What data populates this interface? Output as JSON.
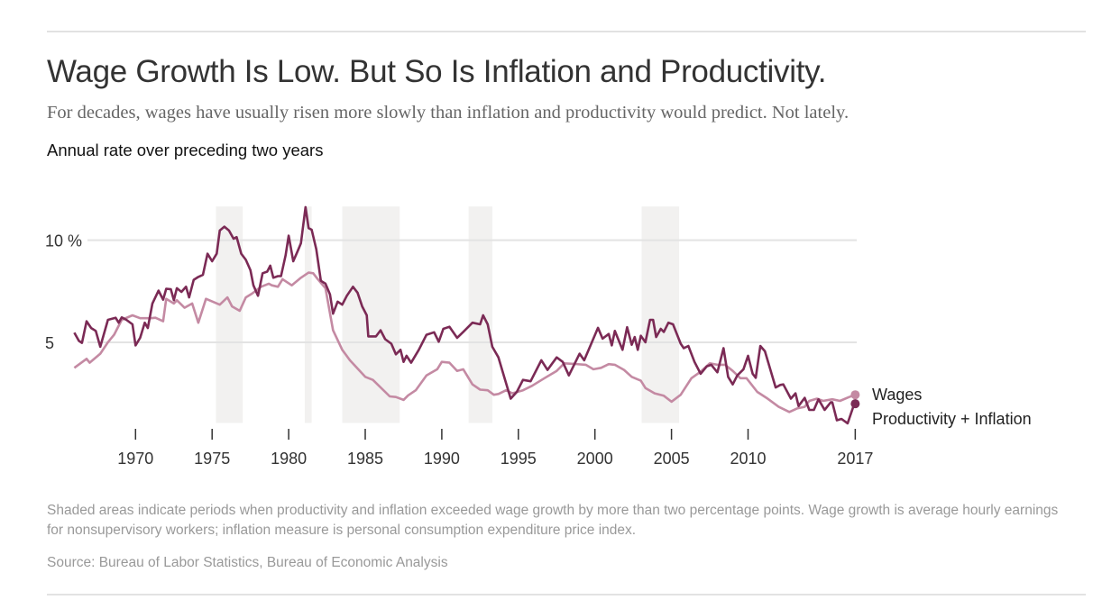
{
  "title": "Wage Growth Is Low. But So Is Inflation and Productivity.",
  "subtitle": "For decades, wages have usually risen more slowly than inflation and productivity would predict. Not lately.",
  "unit_label": "Annual rate over preceding two years",
  "footnote": "Shaded areas indicate periods when productivity and inflation exceeded wage growth by more than two percentage points. Wage growth is average hourly earnings for nonsupervisory workers; inflation measure is personal consumption expenditure price index.",
  "source": "Source: Bureau of Labor Statistics, Bureau of Economic Analysis",
  "chart_data": {
    "type": "line",
    "title": "",
    "xlabel": "",
    "ylabel": "",
    "xlim": [
      1966,
      2017
    ],
    "ylim": [
      1.05,
      11.65
    ],
    "grid": true,
    "legend_placement": "right, at line ends",
    "x_ticks": [
      {
        "value": 1970,
        "label": "1970"
      },
      {
        "value": 1975,
        "label": "1975"
      },
      {
        "value": 1980,
        "label": "1980"
      },
      {
        "value": 1985,
        "label": "1985"
      },
      {
        "value": 1990,
        "label": "1990"
      },
      {
        "value": 1995,
        "label": "1995"
      },
      {
        "value": 2000,
        "label": "2000"
      },
      {
        "value": 2005,
        "label": "2005"
      },
      {
        "value": 2010,
        "label": "2010"
      },
      {
        "value": 2017,
        "label": "2017"
      }
    ],
    "y_ticks": [
      {
        "value": 10,
        "label": "10 %"
      },
      {
        "value": 5,
        "label": "5"
      }
    ],
    "shaded_periods": [
      [
        1975.25,
        1977.0
      ],
      [
        1981.05,
        1981.5
      ],
      [
        1983.5,
        1987.25
      ],
      [
        1991.75,
        1993.3
      ],
      [
        2003.05,
        2005.5
      ]
    ],
    "shade_color": "#f2f1f0",
    "series": [
      {
        "name": "Productivity + Inflation",
        "color": "#7b2a55",
        "points": [
          [
            1966.0,
            5.47
          ],
          [
            1966.3,
            5.07
          ],
          [
            1966.5,
            4.97
          ],
          [
            1966.8,
            6.03
          ],
          [
            1967.1,
            5.7
          ],
          [
            1967.4,
            5.56
          ],
          [
            1967.7,
            4.78
          ],
          [
            1968.2,
            6.1
          ],
          [
            1968.7,
            6.2
          ],
          [
            1968.9,
            5.96
          ],
          [
            1969.1,
            6.22
          ],
          [
            1969.4,
            6.1
          ],
          [
            1969.8,
            5.88
          ],
          [
            1970.0,
            4.85
          ],
          [
            1970.3,
            5.22
          ],
          [
            1970.6,
            5.96
          ],
          [
            1970.8,
            5.7
          ],
          [
            1971.1,
            6.9
          ],
          [
            1971.5,
            7.53
          ],
          [
            1971.8,
            7.09
          ],
          [
            1972.0,
            7.62
          ],
          [
            1972.3,
            7.6
          ],
          [
            1972.5,
            7.06
          ],
          [
            1972.7,
            7.65
          ],
          [
            1973.0,
            7.47
          ],
          [
            1973.3,
            7.72
          ],
          [
            1973.5,
            7.2
          ],
          [
            1973.8,
            8.06
          ],
          [
            1974.1,
            8.2
          ],
          [
            1974.4,
            8.3
          ],
          [
            1974.7,
            9.34
          ],
          [
            1975.0,
            8.97
          ],
          [
            1975.3,
            9.34
          ],
          [
            1975.5,
            10.47
          ],
          [
            1975.8,
            10.66
          ],
          [
            1976.1,
            10.47
          ],
          [
            1976.4,
            10.07
          ],
          [
            1976.6,
            10.15
          ],
          [
            1976.9,
            9.34
          ],
          [
            1977.2,
            9.04
          ],
          [
            1977.5,
            8.53
          ],
          [
            1977.7,
            7.79
          ],
          [
            1978.0,
            7.28
          ],
          [
            1978.3,
            8.38
          ],
          [
            1978.6,
            8.46
          ],
          [
            1978.8,
            8.75
          ],
          [
            1979.0,
            8.16
          ],
          [
            1979.3,
            8.24
          ],
          [
            1979.5,
            8.24
          ],
          [
            1979.8,
            9.26
          ],
          [
            1980.0,
            10.22
          ],
          [
            1980.3,
            8.97
          ],
          [
            1980.6,
            9.49
          ],
          [
            1980.8,
            9.85
          ],
          [
            1981.1,
            11.62
          ],
          [
            1981.3,
            10.59
          ],
          [
            1981.5,
            10.51
          ],
          [
            1981.8,
            9.56
          ],
          [
            1982.1,
            8.01
          ],
          [
            1982.4,
            7.87
          ],
          [
            1982.7,
            7.35
          ],
          [
            1982.9,
            6.4
          ],
          [
            1983.2,
            6.99
          ],
          [
            1983.5,
            6.84
          ],
          [
            1983.8,
            7.28
          ],
          [
            1984.2,
            7.72
          ],
          [
            1984.5,
            7.43
          ],
          [
            1984.8,
            6.76
          ],
          [
            1985.1,
            6.32
          ],
          [
            1985.2,
            5.29
          ],
          [
            1985.7,
            5.29
          ],
          [
            1986.0,
            5.59
          ],
          [
            1986.3,
            5.15
          ],
          [
            1986.7,
            4.93
          ],
          [
            1987.0,
            4.41
          ],
          [
            1987.3,
            4.63
          ],
          [
            1987.5,
            4.04
          ],
          [
            1987.7,
            4.34
          ],
          [
            1988.0,
            4.0
          ],
          [
            1988.5,
            4.63
          ],
          [
            1989.0,
            5.37
          ],
          [
            1989.5,
            5.49
          ],
          [
            1989.8,
            5.03
          ],
          [
            1990.1,
            5.66
          ],
          [
            1990.5,
            5.76
          ],
          [
            1991.0,
            5.22
          ],
          [
            1991.4,
            5.51
          ],
          [
            1992.0,
            5.96
          ],
          [
            1992.5,
            5.88
          ],
          [
            1992.7,
            6.32
          ],
          [
            1993.0,
            5.88
          ],
          [
            1993.3,
            4.78
          ],
          [
            1993.7,
            4.26
          ],
          [
            1994.1,
            3.24
          ],
          [
            1994.5,
            2.24
          ],
          [
            1994.9,
            2.57
          ],
          [
            1995.3,
            3.16
          ],
          [
            1995.8,
            3.09
          ],
          [
            1996.5,
            4.12
          ],
          [
            1996.9,
            3.65
          ],
          [
            1997.5,
            4.26
          ],
          [
            1997.9,
            4.04
          ],
          [
            1998.3,
            3.38
          ],
          [
            1999.0,
            4.44
          ],
          [
            1999.3,
            4.12
          ],
          [
            1999.8,
            5.0
          ],
          [
            2000.2,
            5.71
          ],
          [
            2000.5,
            5.18
          ],
          [
            2000.9,
            5.41
          ],
          [
            2001.1,
            4.85
          ],
          [
            2001.3,
            5.56
          ],
          [
            2001.8,
            4.63
          ],
          [
            2002.1,
            5.74
          ],
          [
            2002.4,
            4.88
          ],
          [
            2002.6,
            5.26
          ],
          [
            2002.8,
            4.63
          ],
          [
            2003.0,
            5.32
          ],
          [
            2003.3,
            5.0
          ],
          [
            2003.6,
            6.1
          ],
          [
            2003.8,
            6.1
          ],
          [
            2004.0,
            5.26
          ],
          [
            2004.3,
            5.66
          ],
          [
            2004.5,
            5.51
          ],
          [
            2004.8,
            5.96
          ],
          [
            2005.1,
            5.88
          ],
          [
            2005.6,
            4.93
          ],
          [
            2005.8,
            4.71
          ],
          [
            2006.1,
            4.82
          ],
          [
            2006.5,
            4.04
          ],
          [
            2006.9,
            3.46
          ],
          [
            2007.3,
            3.82
          ],
          [
            2007.6,
            3.9
          ],
          [
            2008.0,
            3.53
          ],
          [
            2008.4,
            4.71
          ],
          [
            2008.7,
            3.31
          ],
          [
            2009.0,
            2.94
          ],
          [
            2009.3,
            3.38
          ],
          [
            2009.7,
            3.68
          ],
          [
            2010.0,
            4.34
          ],
          [
            2010.3,
            3.46
          ],
          [
            2010.5,
            3.26
          ],
          [
            2010.8,
            4.82
          ],
          [
            2011.1,
            4.56
          ],
          [
            2011.8,
            2.79
          ],
          [
            2012.1,
            2.91
          ],
          [
            2012.3,
            2.94
          ],
          [
            2012.8,
            2.24
          ],
          [
            2013.1,
            2.5
          ],
          [
            2013.3,
            1.88
          ],
          [
            2013.7,
            2.28
          ],
          [
            2014.0,
            1.69
          ],
          [
            2014.3,
            1.69
          ],
          [
            2014.6,
            2.21
          ],
          [
            2015.0,
            1.69
          ],
          [
            2015.4,
            2.06
          ],
          [
            2015.5,
            2.06
          ],
          [
            2015.8,
            1.18
          ],
          [
            2016.1,
            1.25
          ],
          [
            2016.5,
            1.03
          ],
          [
            2016.9,
            1.91
          ],
          [
            2017.0,
            1.99
          ]
        ]
      },
      {
        "name": "Wages",
        "color": "#c48aa3",
        "points": [
          [
            1966.0,
            3.75
          ],
          [
            1966.8,
            4.19
          ],
          [
            1967.0,
            4.0
          ],
          [
            1967.7,
            4.44
          ],
          [
            1968.2,
            5.0
          ],
          [
            1968.6,
            5.37
          ],
          [
            1969.1,
            6.1
          ],
          [
            1969.8,
            6.32
          ],
          [
            1970.3,
            6.18
          ],
          [
            1971.0,
            6.18
          ],
          [
            1971.3,
            6.2
          ],
          [
            1971.8,
            6.03
          ],
          [
            1972.0,
            7.13
          ],
          [
            1972.5,
            6.9
          ],
          [
            1972.7,
            7.06
          ],
          [
            1973.2,
            6.69
          ],
          [
            1973.7,
            6.9
          ],
          [
            1974.1,
            5.96
          ],
          [
            1974.6,
            7.13
          ],
          [
            1975.5,
            6.84
          ],
          [
            1976.0,
            7.2
          ],
          [
            1976.3,
            6.76
          ],
          [
            1976.8,
            6.54
          ],
          [
            1977.2,
            7.2
          ],
          [
            1977.6,
            7.38
          ],
          [
            1978.2,
            7.72
          ],
          [
            1978.7,
            7.87
          ],
          [
            1978.9,
            7.79
          ],
          [
            1979.3,
            7.72
          ],
          [
            1979.6,
            8.09
          ],
          [
            1980.2,
            7.79
          ],
          [
            1980.8,
            8.16
          ],
          [
            1981.3,
            8.41
          ],
          [
            1981.6,
            8.38
          ],
          [
            1981.9,
            8.09
          ],
          [
            1982.4,
            7.65
          ],
          [
            1982.9,
            5.59
          ],
          [
            1983.5,
            4.63
          ],
          [
            1984.0,
            4.12
          ],
          [
            1985.0,
            3.31
          ],
          [
            1985.5,
            3.16
          ],
          [
            1986.6,
            2.35
          ],
          [
            1987.0,
            2.32
          ],
          [
            1987.5,
            2.18
          ],
          [
            1987.8,
            2.4
          ],
          [
            1988.3,
            2.65
          ],
          [
            1989.0,
            3.38
          ],
          [
            1989.7,
            3.68
          ],
          [
            1990.0,
            4.04
          ],
          [
            1990.5,
            4.0
          ],
          [
            1991.0,
            3.6
          ],
          [
            1991.4,
            3.68
          ],
          [
            1992.0,
            2.94
          ],
          [
            1992.5,
            2.68
          ],
          [
            1993.0,
            2.65
          ],
          [
            1993.4,
            2.43
          ],
          [
            1993.7,
            2.47
          ],
          [
            1994.2,
            2.65
          ],
          [
            1994.6,
            2.5
          ],
          [
            1995.3,
            2.65
          ],
          [
            1995.9,
            2.87
          ],
          [
            1996.7,
            3.24
          ],
          [
            1997.5,
            3.6
          ],
          [
            1998.0,
            3.97
          ],
          [
            1998.7,
            3.94
          ],
          [
            1999.4,
            3.9
          ],
          [
            1999.9,
            3.68
          ],
          [
            2000.4,
            3.75
          ],
          [
            2000.9,
            3.93
          ],
          [
            2001.3,
            3.9
          ],
          [
            2001.9,
            3.65
          ],
          [
            2002.4,
            3.31
          ],
          [
            2003.0,
            3.12
          ],
          [
            2003.3,
            2.76
          ],
          [
            2003.9,
            2.5
          ],
          [
            2004.5,
            2.38
          ],
          [
            2005.0,
            2.09
          ],
          [
            2005.6,
            2.43
          ],
          [
            2006.3,
            3.24
          ],
          [
            2006.9,
            3.56
          ],
          [
            2007.5,
            3.97
          ],
          [
            2008.0,
            3.9
          ],
          [
            2008.5,
            3.9
          ],
          [
            2009.0,
            3.6
          ],
          [
            2009.5,
            3.24
          ],
          [
            2009.9,
            3.24
          ],
          [
            2010.6,
            2.57
          ],
          [
            2011.2,
            2.28
          ],
          [
            2012.0,
            1.84
          ],
          [
            2012.7,
            1.59
          ],
          [
            2013.2,
            1.76
          ],
          [
            2013.7,
            1.84
          ],
          [
            2014.0,
            2.13
          ],
          [
            2014.5,
            2.24
          ],
          [
            2014.9,
            2.13
          ],
          [
            2015.5,
            2.21
          ],
          [
            2016.0,
            2.13
          ],
          [
            2016.6,
            2.32
          ],
          [
            2017.0,
            2.43
          ]
        ]
      }
    ]
  }
}
